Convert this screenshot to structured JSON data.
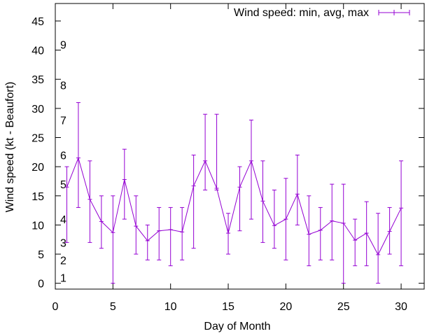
{
  "chart_data": {
    "type": "line",
    "title": "",
    "xlabel": "Day of Month",
    "ylabel": "Wind speed (kt - Beaufort)",
    "xlim": [
      0,
      32
    ],
    "ylim": [
      -1,
      48
    ],
    "xticks": [
      "0",
      "5",
      "10",
      "15",
      "20",
      "25",
      "30"
    ],
    "yticks": [
      "0",
      "5",
      "10",
      "15",
      "20",
      "25",
      "30",
      "35",
      "40",
      "45"
    ],
    "grid": false,
    "legend": {
      "position": "top-right",
      "entries": [
        "Wind speed: min, avg, max"
      ]
    },
    "series": [
      {
        "name": "Wind speed: min, avg, max",
        "color": "#9400d3",
        "style": "line-with-errorbars",
        "x": [
          1,
          2,
          3,
          4,
          5,
          6,
          7,
          8,
          9,
          10,
          11,
          12,
          13,
          14,
          15,
          16,
          17,
          18,
          19,
          20,
          21,
          22,
          23,
          24,
          25,
          26,
          27,
          28,
          29,
          30
        ],
        "avg": [
          16.5,
          21.5,
          14.4,
          10.6,
          8.7,
          17.8,
          9.8,
          7.3,
          9,
          9.2,
          8.8,
          16.7,
          21,
          16.3,
          8.6,
          16.5,
          21,
          14.1,
          9.9,
          11,
          15.3,
          8.4,
          9.1,
          10.7,
          10.3,
          7.4,
          8.6,
          4.9,
          8.9,
          12.9
        ],
        "min": [
          7,
          13,
          7,
          6,
          0,
          11,
          5,
          4,
          4,
          3,
          4,
          6,
          16,
          16,
          5,
          9,
          11,
          7,
          6,
          4,
          10,
          3,
          4,
          4,
          0,
          3,
          3,
          0,
          5,
          3
        ],
        "max": [
          20,
          31,
          21,
          15,
          15,
          23,
          15,
          10,
          13,
          13,
          13,
          22,
          29,
          29,
          12,
          20,
          28,
          21,
          16,
          18,
          22,
          15,
          13,
          17,
          17,
          11,
          14,
          12,
          13,
          21
        ]
      }
    ],
    "annotations": {
      "beaufort_scale": [
        {
          "label": "1",
          "y": 1
        },
        {
          "label": "2",
          "y": 4
        },
        {
          "label": "3",
          "y": 7
        },
        {
          "label": "4",
          "y": 11
        },
        {
          "label": "5",
          "y": 17
        },
        {
          "label": "6",
          "y": 22
        },
        {
          "label": "7",
          "y": 28
        },
        {
          "label": "8",
          "y": 34
        },
        {
          "label": "9",
          "y": 41
        }
      ]
    }
  }
}
